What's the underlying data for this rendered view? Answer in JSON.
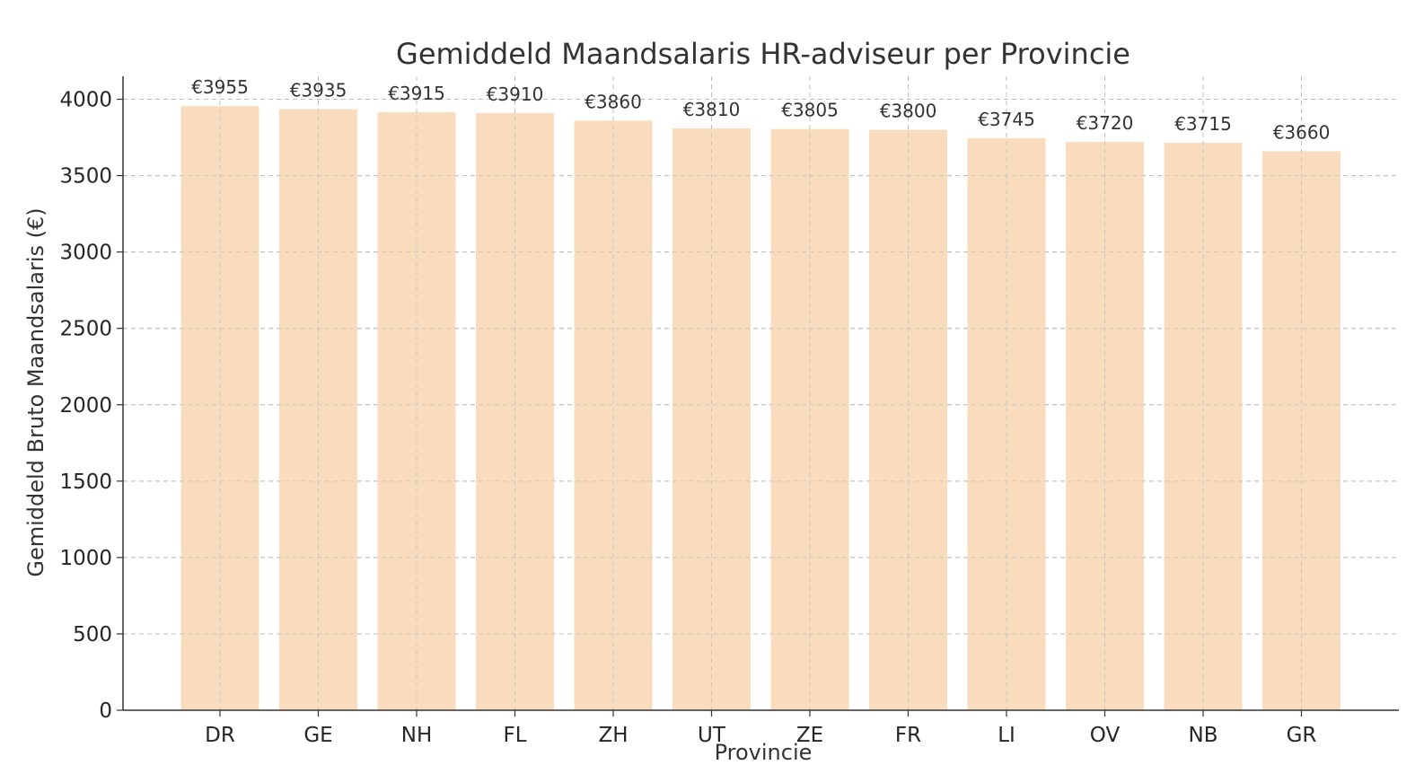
{
  "chart_data": {
    "type": "bar",
    "title": "Gemiddeld Maandsalaris HR-adviseur per Provincie",
    "xlabel": "Provincie",
    "ylabel": "Gemiddeld Bruto Maandsalaris (€)",
    "categories": [
      "DR",
      "GE",
      "NH",
      "FL",
      "ZH",
      "UT",
      "ZE",
      "FR",
      "LI",
      "OV",
      "NB",
      "GR"
    ],
    "values": [
      3955,
      3935,
      3915,
      3910,
      3860,
      3810,
      3805,
      3800,
      3745,
      3720,
      3715,
      3660
    ],
    "data_labels": [
      "€3955",
      "€3935",
      "€3915",
      "€3910",
      "€3860",
      "€3810",
      "€3805",
      "€3800",
      "€3745",
      "€3720",
      "€3715",
      "€3660"
    ],
    "ylim": [
      0,
      4150
    ],
    "yticks": [
      0,
      500,
      1000,
      1500,
      2000,
      2500,
      3000,
      3500,
      4000
    ],
    "grid": true,
    "bar_color": "#f8dcbd"
  }
}
